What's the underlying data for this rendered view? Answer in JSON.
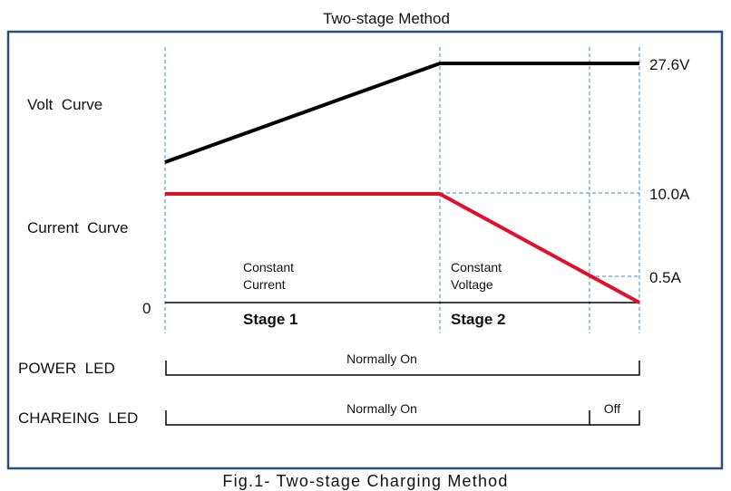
{
  "title": "Two-stage Method",
  "caption": "Fig.1- Two-stage Charging Method",
  "labels": {
    "volt_curve": "Volt  Curve",
    "current_curve": "Current  Curve",
    "zero": "0",
    "v_max": "27.6V",
    "i_max": "10.0A",
    "i_cut": "0.5A",
    "stage1_desc_line1": "Constant",
    "stage1_desc_line2": "Current",
    "stage2_desc_line1": "Constant",
    "stage2_desc_line2": "Voltage",
    "stage1": "Stage 1",
    "stage2": "Stage 2",
    "power_led": "POWER  LED",
    "charging_led": "CHAREING  LED",
    "power_led_state": "Normally On",
    "charging_led_state_on": "Normally On",
    "charging_led_state_off": "Off"
  },
  "colors": {
    "voltage": "#000000",
    "current": "#e0102a",
    "guide": "#3a86c8",
    "frame": "#2a4f7a"
  },
  "chart_data": {
    "type": "line",
    "title": "Two-stage Method",
    "x": [
      "start",
      "stage1_end",
      "cutoff",
      "end"
    ],
    "series": [
      {
        "name": "Volt Curve",
        "values_text": "rises linearly during Stage 1, then constant",
        "y_end_label": "27.6V"
      },
      {
        "name": "Current Curve",
        "values": [
          10.0,
          10.0,
          0.5,
          0.0
        ],
        "unit": "A"
      }
    ],
    "stages": [
      "Stage 1",
      "Stage 2"
    ]
  }
}
